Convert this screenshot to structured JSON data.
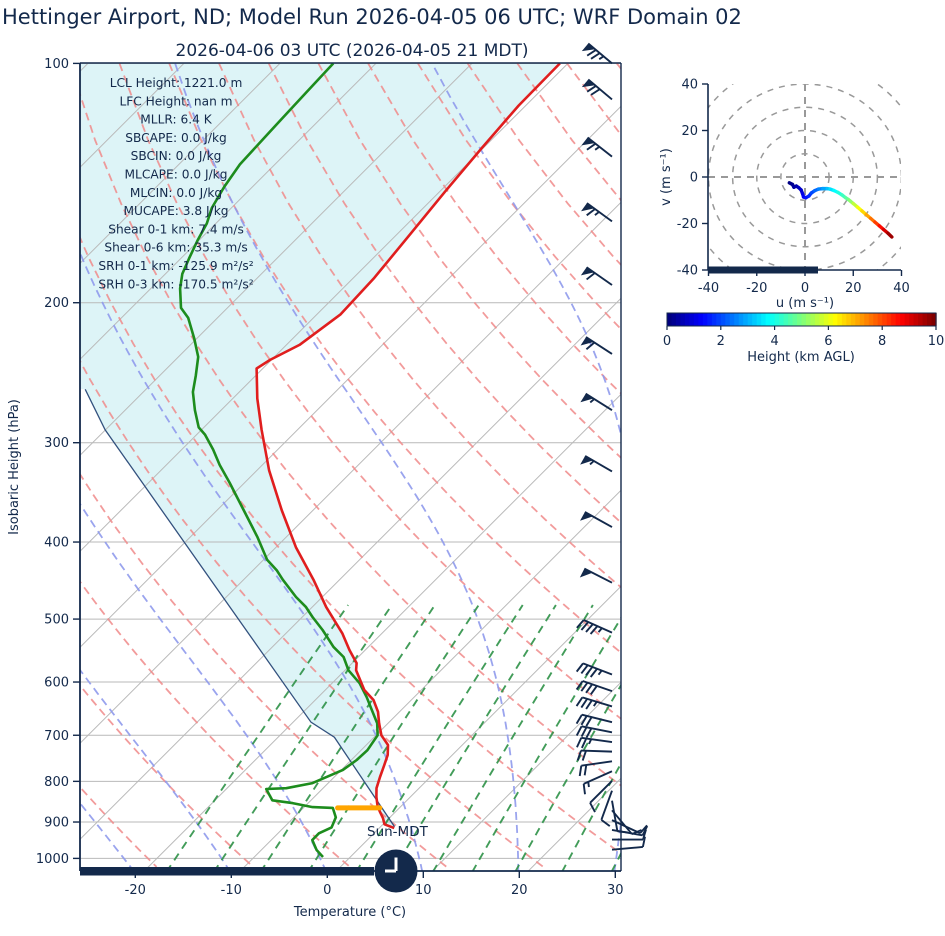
{
  "title": "Hettinger Airport, ND; Model Run 2026-04-05 06 UTC; WRF Domain 02",
  "subtitle": "2026-04-06 03 UTC  (2026-04-05 21 MDT)",
  "colors": {
    "accent_navy": "#13294b",
    "temperature_line": "#e01e1e",
    "dewpoint_line": "#1d8c1d",
    "parcel_line": "#33517e",
    "cape_fill": "#ddf4f7",
    "isotherm": "#b9b9b9",
    "gridline": "#b9b9b9",
    "dry_adiabat": "#f08a8a",
    "moist_adiabat": "#8f9aec",
    "mixing_ratio": "#2e9147",
    "orange_marker": "#ffa500",
    "hodo_grid": "#999999"
  },
  "chart_data": {
    "type": "line",
    "subtype": "skewT_logP_sounding_with_hodograph",
    "skewt": {
      "xlabel": "Temperature (°C)",
      "ylabel": "Isobaric Height (hPa)",
      "x_ticks": [
        -20,
        -10,
        0,
        10,
        20,
        30
      ],
      "x_range_c": [
        -25.8,
        30.7
      ],
      "p_ticks": [
        100,
        200,
        300,
        400,
        500,
        600,
        700,
        800,
        900,
        1000
      ],
      "p_range_hpa": [
        100,
        1037
      ],
      "skew_deg": 45,
      "isotherms": {
        "min": -120,
        "max": 30,
        "step": 10
      },
      "dry_adiabats_c": [
        -30,
        -20,
        -10,
        0,
        10,
        20,
        30,
        40,
        50,
        60,
        70,
        80,
        90,
        100,
        110,
        120,
        130,
        140,
        150,
        160,
        170
      ],
      "moist_adiabat_starts_c": [
        -60,
        -50,
        -40,
        -30,
        -20,
        -10,
        0,
        10,
        20,
        30,
        40
      ],
      "mixing_ratios_gkg": [
        1,
        1.5,
        2.2,
        3.2,
        4.6,
        6,
        8,
        10.5,
        14,
        19,
        26
      ],
      "stats": [
        "LCL Height: 1221.0 m",
        "LFC Height: nan m",
        "MLLR: 6.4 K",
        "SBCAPE: 0.0 J/kg",
        "SBCIN: 0.0 J/kg",
        "MLCAPE: 0.0 J/kg",
        "MLCIN: 0.0 J/kg",
        "MUCAPE: 3.8 J/kg",
        "Shear 0-1 km: 7.4 m/s",
        "Shear 0-6 km: 35.3 m/s",
        "SRH 0-1 km: -125.9 m²/s²",
        "SRH 0-3 km: -170.5 m²/s²"
      ],
      "surface_label": "Sun-MDT",
      "clock_time": "21:00",
      "temperature_c": [
        [
          100,
          -59.9
        ],
        [
          113,
          -59.8
        ],
        [
          128,
          -59.2
        ],
        [
          145,
          -58.5
        ],
        [
          164,
          -57.7
        ],
        [
          186,
          -56.9
        ],
        [
          207,
          -56.6
        ],
        [
          226,
          -57.7
        ],
        [
          236,
          -59.2
        ],
        [
          242,
          -59.7
        ],
        [
          264,
          -56.5
        ],
        [
          289,
          -52.8
        ],
        [
          325,
          -47.8
        ],
        [
          365,
          -42.3
        ],
        [
          406,
          -37.0
        ],
        [
          446,
          -31.8
        ],
        [
          483,
          -27.6
        ],
        [
          521,
          -23.2
        ],
        [
          547,
          -20.7
        ],
        [
          568,
          -18.6
        ],
        [
          580,
          -17.9
        ],
        [
          614,
          -15.0
        ],
        [
          632,
          -13.0
        ],
        [
          654,
          -11.3
        ],
        [
          676,
          -10.0
        ],
        [
          700,
          -8.5
        ],
        [
          720,
          -6.8
        ],
        [
          741,
          -5.8
        ],
        [
          763,
          -5.1
        ],
        [
          790,
          -4.3
        ],
        [
          816,
          -3.5
        ],
        [
          837,
          -2.6
        ],
        [
          860,
          -1.5
        ],
        [
          875,
          -0.6
        ],
        [
          890,
          0.3
        ],
        [
          906,
          1.1
        ],
        [
          916,
          2.5
        ]
      ],
      "dewpoint_c": [
        [
          100,
          -83.5
        ],
        [
          109,
          -83.3
        ],
        [
          117,
          -83.1
        ],
        [
          126,
          -82.9
        ],
        [
          134,
          -82.7
        ],
        [
          143,
          -82.0
        ],
        [
          152,
          -81.1
        ],
        [
          159,
          -80.0
        ],
        [
          167,
          -79.2
        ],
        [
          176,
          -78.2
        ],
        [
          184,
          -77.3
        ],
        [
          192,
          -76.0
        ],
        [
          203,
          -73.9
        ],
        [
          209,
          -72.1
        ],
        [
          222,
          -69.3
        ],
        [
          234,
          -67.0
        ],
        [
          247,
          -65.3
        ],
        [
          259,
          -63.9
        ],
        [
          273,
          -61.8
        ],
        [
          287,
          -59.6
        ],
        [
          293,
          -58.2
        ],
        [
          306,
          -55.8
        ],
        [
          320,
          -53.5
        ],
        [
          337,
          -50.6
        ],
        [
          362,
          -46.7
        ],
        [
          394,
          -42.1
        ],
        [
          421,
          -38.7
        ],
        [
          434,
          -36.6
        ],
        [
          446,
          -35.0
        ],
        [
          469,
          -31.8
        ],
        [
          483,
          -29.7
        ],
        [
          497,
          -28.0
        ],
        [
          516,
          -25.6
        ],
        [
          542,
          -22.7
        ],
        [
          558,
          -20.6
        ],
        [
          580,
          -18.7
        ],
        [
          602,
          -16.2
        ],
        [
          627,
          -14.0
        ],
        [
          651,
          -12.1
        ],
        [
          676,
          -10.2
        ],
        [
          700,
          -8.9
        ],
        [
          731,
          -8.4
        ],
        [
          752,
          -8.5
        ],
        [
          774,
          -8.9
        ],
        [
          804,
          -10.7
        ],
        [
          816,
          -12.9
        ],
        [
          818,
          -14.9
        ],
        [
          845,
          -13.1
        ],
        [
          852,
          -10.7
        ],
        [
          862,
          -8.2
        ],
        [
          864,
          -6.0
        ],
        [
          888,
          -4.7
        ],
        [
          914,
          -4.1
        ],
        [
          930,
          -4.8
        ],
        [
          948,
          -4.8
        ],
        [
          976,
          -3.3
        ],
        [
          996,
          -1.9
        ]
      ],
      "parcel_c": [
        [
          916,
          2.4
        ],
        [
          911,
          2.3
        ],
        [
          704,
          -13.2
        ],
        [
          674,
          -17.2
        ],
        [
          289,
          -69.1
        ],
        [
          257,
          -75.4
        ]
      ],
      "orange_level_marker": {
        "pressure_hpa": 864,
        "t_from_c": -5.5,
        "t_to_c": -1.1
      },
      "wind_barbs": [
        [
          100,
          310,
          75
        ],
        [
          111,
          310,
          70
        ],
        [
          131,
          308,
          65
        ],
        [
          158,
          306,
          65
        ],
        [
          190,
          305,
          60
        ],
        [
          232,
          303,
          60
        ],
        [
          273,
          302,
          55
        ],
        [
          326,
          300,
          55
        ],
        [
          383,
          299,
          50
        ],
        [
          450,
          297,
          50
        ],
        [
          520,
          294,
          45
        ],
        [
          587,
          291,
          45
        ],
        [
          616,
          289,
          40
        ],
        [
          644,
          287,
          35
        ],
        [
          674,
          284,
          30
        ],
        [
          694,
          281,
          28
        ],
        [
          714,
          278,
          25
        ],
        [
          734,
          272,
          22
        ],
        [
          755,
          262,
          18
        ],
        [
          777,
          246,
          15
        ],
        [
          799,
          225,
          12
        ],
        [
          822,
          200,
          12
        ],
        [
          846,
          170,
          12
        ],
        [
          870,
          140,
          12
        ],
        [
          895,
          115,
          12
        ],
        [
          921,
          100,
          10
        ],
        [
          947,
          90,
          10
        ],
        [
          975,
          85,
          8
        ]
      ]
    },
    "hodograph": {
      "xlabel": "u (m s⁻¹)",
      "ylabel": "v (m s⁻¹)",
      "ticks": [
        -40,
        -20,
        0,
        20,
        40
      ],
      "axis_range": [
        -40,
        40
      ],
      "ring_radii_ms": [
        10,
        20,
        30,
        40,
        50
      ],
      "trace_uvh": [
        [
          -6.5,
          -2.5,
          0.0
        ],
        [
          -5.2,
          -3.2,
          0.1
        ],
        [
          -4.6,
          -4.4,
          0.25
        ],
        [
          -3.6,
          -3.9,
          0.4
        ],
        [
          -2.6,
          -4.6,
          0.55
        ],
        [
          -1.6,
          -5.6,
          0.7
        ],
        [
          -1.0,
          -7.2,
          0.9
        ],
        [
          -0.6,
          -8.6,
          1.1
        ],
        [
          0.4,
          -8.9,
          1.3
        ],
        [
          1.6,
          -8.2,
          1.5
        ],
        [
          2.6,
          -6.9,
          1.8
        ],
        [
          4.0,
          -5.9,
          2.1
        ],
        [
          5.6,
          -5.2,
          2.4
        ],
        [
          7.4,
          -5.0,
          2.7
        ],
        [
          9.2,
          -5.0,
          3.0
        ],
        [
          10.4,
          -5.2,
          3.3
        ],
        [
          12.0,
          -5.8,
          3.6
        ],
        [
          13.6,
          -6.6,
          3.9
        ],
        [
          15.3,
          -7.7,
          4.2
        ],
        [
          16.8,
          -8.9,
          4.5
        ],
        [
          18.0,
          -9.7,
          4.8
        ],
        [
          18.7,
          -10.3,
          5.0
        ],
        [
          20.0,
          -11.4,
          5.4
        ],
        [
          21.8,
          -13.0,
          5.9
        ],
        [
          23.6,
          -14.6,
          6.4
        ],
        [
          25.4,
          -16.2,
          6.9
        ],
        [
          27.2,
          -17.8,
          7.4
        ],
        [
          29.0,
          -19.4,
          7.9
        ],
        [
          30.8,
          -21.0,
          8.4
        ],
        [
          32.6,
          -22.6,
          8.9
        ],
        [
          34.4,
          -24.2,
          9.4
        ],
        [
          36.0,
          -25.8,
          10.0
        ]
      ]
    },
    "colorbar": {
      "label": "Height (km AGL)",
      "ticks": [
        0,
        2,
        4,
        6,
        8,
        10
      ],
      "range": [
        0,
        10
      ],
      "colormap": "jet"
    }
  }
}
